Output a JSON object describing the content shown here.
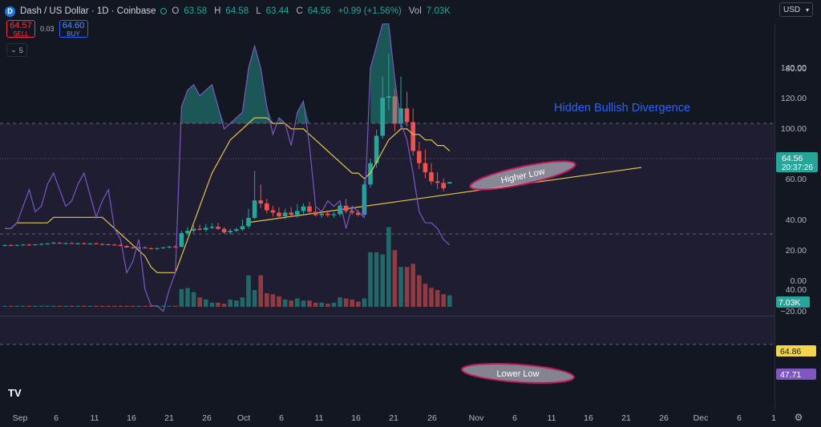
{
  "header": {
    "title": "Dash / US Dollar · 1D · Coinbase",
    "logo_letter": "D",
    "ohlc": [
      {
        "k": "O",
        "v": "63.58"
      },
      {
        "k": "H",
        "v": "64.58"
      },
      {
        "k": "L",
        "v": "63.44"
      },
      {
        "k": "C",
        "v": "64.56"
      },
      {
        "k": "",
        "v": "+0.99 (+1.56%)"
      },
      {
        "k": "Vol",
        "v": "7.03K"
      }
    ]
  },
  "trade": {
    "sell_price": "64.57",
    "sell_label": "SELL",
    "spread": "0.03",
    "buy_price": "64.60",
    "buy_label": "BUY"
  },
  "collapse_count": "5",
  "currency": "USD",
  "price_axis": [
    "140.00",
    "120.00",
    "100.00",
    "80.00",
    "60.00",
    "40.00",
    "20.00",
    "0.00",
    "−20.00"
  ],
  "price_label": "64.56",
  "countdown": "20:37:26",
  "volume_label": "7.03K",
  "rsi_axis": [
    "80.00",
    "60.00",
    "40.00"
  ],
  "rsi_labels": {
    "ma": "64.86",
    "rsi": "47.71"
  },
  "time_axis": [
    "Sep",
    "6",
    "11",
    "16",
    "21",
    "26",
    "Oct",
    "6",
    "11",
    "16",
    "21",
    "26",
    "Nov",
    "6",
    "11",
    "16",
    "21",
    "26",
    "Dec",
    "6",
    "1"
  ],
  "annotations": {
    "divergence": "Hidden Bullish Divergence",
    "higher_low": "Higher Low",
    "lower_low": "Lower Low"
  },
  "colors": {
    "up": "#26a69a",
    "down": "#ef5350",
    "ma": "#e8c547",
    "rsi": "#7e57c2",
    "annotation": "#2962ff",
    "background": "#131722"
  },
  "chart_data": {
    "type": "candlestick",
    "title": "Dash / US Dollar · 1D · Coinbase",
    "ylim": [
      -20,
      150
    ],
    "candles": [
      [
        22.8,
        23.6,
        22.3,
        23.1
      ],
      [
        23.1,
        23.8,
        22.6,
        22.9
      ],
      [
        22.9,
        23.5,
        22.4,
        23.2
      ],
      [
        23.2,
        23.9,
        22.8,
        23.4
      ],
      [
        23.4,
        24.1,
        22.9,
        23.2
      ],
      [
        23.2,
        23.8,
        22.7,
        23.6
      ],
      [
        23.6,
        24.3,
        23.1,
        23.9
      ],
      [
        23.9,
        24.6,
        23.3,
        24.2
      ],
      [
        24.2,
        25.4,
        23.8,
        24.6
      ],
      [
        24.6,
        25.1,
        23.9,
        24.1
      ],
      [
        24.1,
        24.8,
        23.5,
        24.4
      ],
      [
        24.4,
        25.0,
        23.8,
        24.0
      ],
      [
        24.0,
        24.7,
        23.4,
        24.3
      ],
      [
        24.3,
        24.9,
        23.7,
        23.9
      ],
      [
        23.9,
        24.5,
        23.3,
        24.2
      ],
      [
        24.2,
        24.8,
        23.6,
        23.8
      ],
      [
        23.8,
        24.4,
        23.2,
        23.6
      ],
      [
        23.6,
        24.2,
        23.0,
        23.4
      ],
      [
        23.4,
        24.0,
        22.8,
        23.2
      ],
      [
        23.2,
        23.8,
        22.4,
        22.5
      ],
      [
        22.5,
        23.1,
        21.3,
        21.6
      ],
      [
        21.6,
        22.2,
        20.8,
        21.2
      ],
      [
        21.2,
        22.0,
        20.6,
        21.5
      ],
      [
        21.5,
        22.3,
        20.9,
        21.0
      ],
      [
        21.0,
        21.7,
        20.3,
        20.6
      ],
      [
        20.6,
        21.4,
        20.0,
        21.1
      ],
      [
        21.1,
        22.0,
        20.6,
        21.6
      ],
      [
        21.6,
        22.6,
        21.0,
        22.1
      ],
      [
        22.1,
        23.0,
        21.5,
        22.0
      ],
      [
        22.0,
        32.5,
        21.5,
        31.0
      ],
      [
        31.0,
        35.0,
        29.5,
        32.5
      ],
      [
        32.5,
        36.0,
        31.0,
        33.8
      ],
      [
        33.8,
        36.5,
        32.5,
        33.2
      ],
      [
        33.2,
        37.0,
        32.0,
        34.5
      ],
      [
        34.5,
        37.5,
        33.5,
        35.2
      ],
      [
        35.2,
        37.8,
        33.0,
        33.8
      ],
      [
        33.8,
        35.0,
        30.5,
        31.5
      ],
      [
        31.5,
        34.0,
        30.0,
        32.5
      ],
      [
        32.5,
        34.5,
        31.5,
        33.5
      ],
      [
        33.5,
        40.0,
        32.5,
        35.5
      ],
      [
        35.5,
        47.0,
        34.0,
        41.0
      ],
      [
        41.0,
        72.0,
        40.0,
        52.5
      ],
      [
        52.5,
        63.0,
        47.5,
        50.5
      ],
      [
        50.5,
        53.5,
        44.0,
        46.0
      ],
      [
        46.0,
        49.0,
        42.0,
        44.5
      ],
      [
        44.5,
        48.0,
        40.5,
        42.0
      ],
      [
        42.0,
        47.0,
        40.0,
        44.5
      ],
      [
        44.5,
        48.0,
        41.5,
        43.0
      ],
      [
        43.0,
        50.0,
        41.0,
        45.5
      ],
      [
        45.5,
        50.5,
        42.5,
        48.5
      ],
      [
        48.5,
        51.5,
        44.0,
        45.0
      ],
      [
        45.0,
        48.0,
        42.0,
        42.8
      ],
      [
        42.8,
        45.5,
        41.0,
        43.8
      ],
      [
        43.8,
        46.0,
        41.5,
        42.8
      ],
      [
        42.8,
        45.0,
        41.0,
        43.5
      ],
      [
        43.5,
        50.0,
        42.0,
        49.0
      ],
      [
        49.0,
        53.5,
        44.0,
        45.5
      ],
      [
        45.5,
        48.0,
        43.0,
        44.5
      ],
      [
        44.5,
        46.0,
        42.0,
        43.0
      ],
      [
        43.0,
        66.0,
        42.5,
        63.0
      ],
      [
        63.0,
        80.0,
        61.0,
        77.0
      ],
      [
        77.0,
        99.0,
        74.0,
        95.0
      ],
      [
        95.0,
        134.0,
        93.0,
        120.0
      ],
      [
        120.0,
        149.0,
        112.0,
        121.0
      ],
      [
        121.0,
        126.0,
        98.0,
        103.0
      ],
      [
        103.0,
        134.0,
        100.0,
        113.0
      ],
      [
        113.0,
        124.0,
        101.0,
        104.0
      ],
      [
        104.0,
        113.0,
        82.0,
        85.0
      ],
      [
        85.0,
        91.0,
        73.0,
        77.0
      ],
      [
        77.0,
        86.0,
        67.0,
        71.0
      ],
      [
        71.0,
        77.0,
        63.0,
        65.0
      ],
      [
        65.0,
        71.0,
        60.0,
        64.0
      ],
      [
        64.0,
        67.0,
        58.5,
        60.5
      ],
      [
        63.58,
        64.58,
        63.44,
        64.56
      ]
    ],
    "volume": [
      0.5,
      0.5,
      0.5,
      0.5,
      0.5,
      0.5,
      0.5,
      0.5,
      0.5,
      0.5,
      0.5,
      0.5,
      0.5,
      0.5,
      0.5,
      0.5,
      0.5,
      0.5,
      0.5,
      0.5,
      0.5,
      0.5,
      0.5,
      0.5,
      0.5,
      0.5,
      0.5,
      0.5,
      0.5,
      8.5,
      9.0,
      7.0,
      4.5,
      3.5,
      2.0,
      2.0,
      1.5,
      3.5,
      3.0,
      4.5,
      15.0,
      8.0,
      15.0,
      6.5,
      6.0,
      5.0,
      3.5,
      3.0,
      4.0,
      3.0,
      3.0,
      2.0,
      2.0,
      1.5,
      2.0,
      4.5,
      4.0,
      3.5,
      2.5,
      4.0,
      26.0,
      26.0,
      25.0,
      38.0,
      27.0,
      19.0,
      19.0,
      20.5,
      15.0,
      11.0,
      9.0,
      8.0,
      6.0,
      5.5
    ],
    "rsi": [
      51,
      51,
      52,
      55,
      58,
      54,
      55,
      59,
      61,
      58,
      55,
      56,
      59,
      61,
      57,
      53,
      56,
      58,
      51,
      49,
      43,
      45,
      49,
      40,
      37,
      37,
      36,
      40,
      43,
      73,
      76,
      77,
      75,
      76,
      77,
      73,
      69,
      70,
      71,
      72,
      80,
      84,
      80,
      73,
      68,
      71,
      70,
      66,
      72,
      74,
      66,
      55,
      54,
      56,
      55,
      56,
      51,
      55,
      54,
      53,
      80,
      84,
      88,
      88,
      78,
      70,
      67,
      61,
      54,
      52,
      52,
      51,
      49,
      48
    ],
    "rsi_ma": [
      51,
      51,
      52,
      52,
      52,
      52,
      52,
      52,
      53,
      53,
      53,
      53,
      53,
      53,
      53,
      53,
      53,
      52,
      51,
      50,
      49,
      48,
      47,
      46,
      44,
      43,
      43,
      43,
      43,
      46,
      49,
      52,
      55,
      58,
      61,
      63,
      65,
      67,
      68,
      69,
      70,
      71,
      71,
      71,
      70,
      70,
      70,
      69,
      69,
      69,
      68,
      67,
      66,
      65,
      64,
      63,
      62,
      61,
      61,
      60,
      61,
      63,
      65,
      67,
      68,
      69,
      69,
      68,
      68,
      67,
      67,
      66,
      66,
      65
    ],
    "rsi_ylim": [
      20,
      95
    ],
    "rsi_band": [
      30,
      70
    ]
  }
}
